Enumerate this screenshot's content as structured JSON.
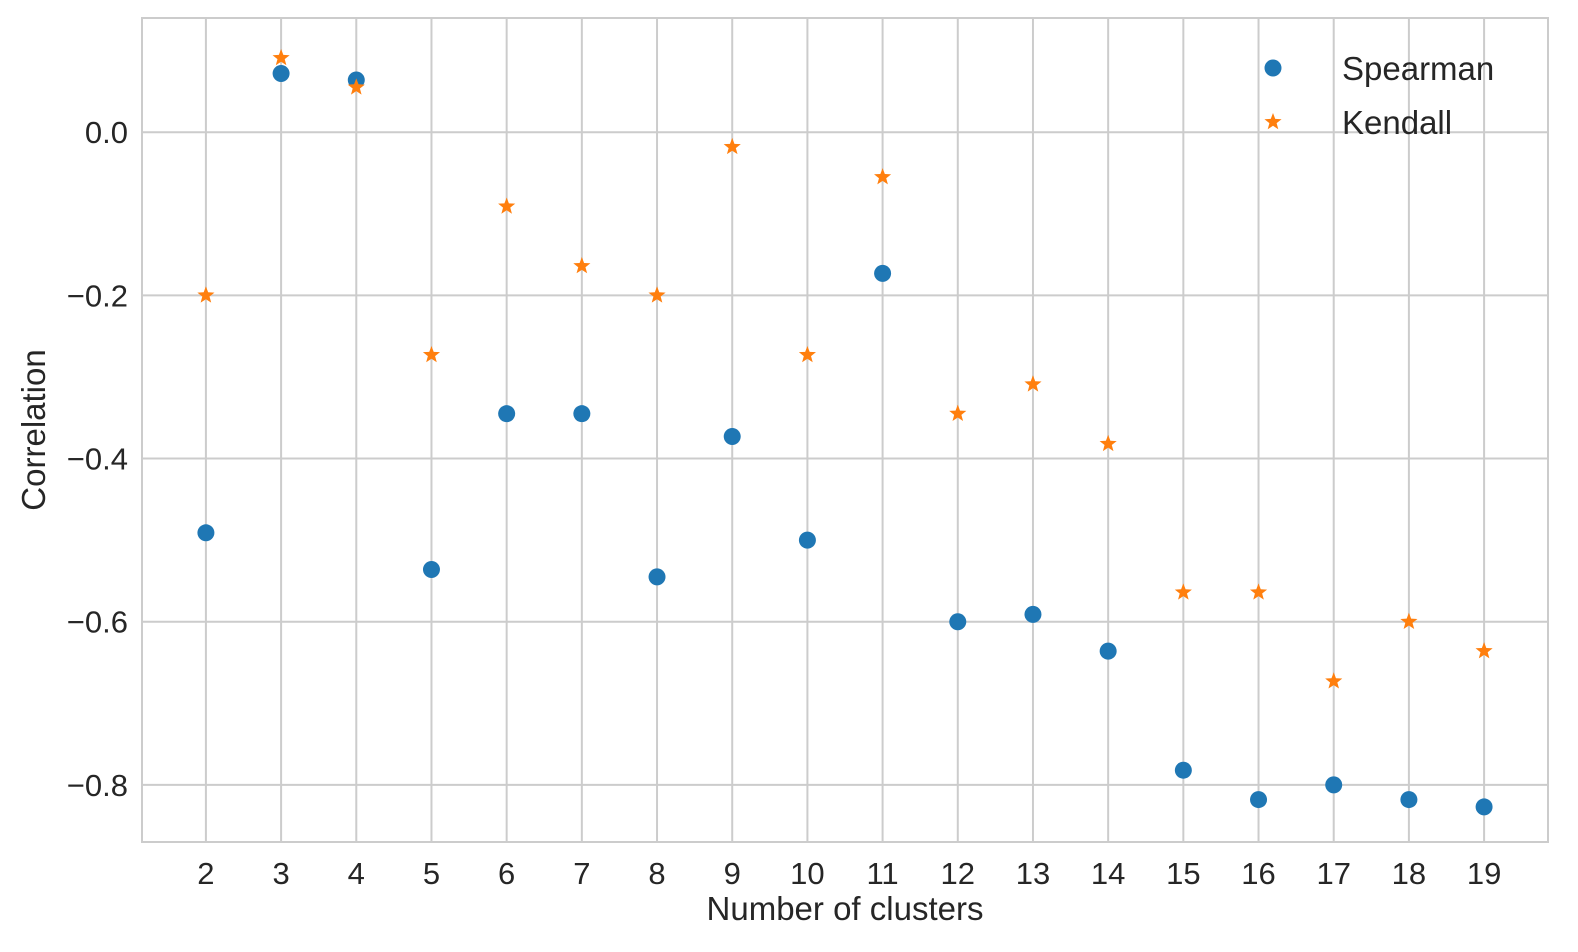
{
  "chart_data": {
    "type": "scatter",
    "xlabel": "Number of clusters",
    "ylabel": "Correlation",
    "x": [
      2,
      3,
      4,
      5,
      6,
      7,
      8,
      9,
      10,
      11,
      12,
      13,
      14,
      15,
      16,
      17,
      18,
      19
    ],
    "xlim": [
      1.15,
      19.85
    ],
    "ylim": [
      -0.87,
      0.14
    ],
    "xticks": [
      2,
      3,
      4,
      5,
      6,
      7,
      8,
      9,
      10,
      11,
      12,
      13,
      14,
      15,
      16,
      17,
      18,
      19
    ],
    "yticks": [
      0.0,
      -0.2,
      -0.4,
      -0.6,
      -0.8
    ],
    "ytick_labels": [
      "0.0",
      "−0.2",
      "−0.4",
      "−0.6",
      "−0.8"
    ],
    "grid": true,
    "legend_position": "top-right",
    "series": [
      {
        "name": "Spearman",
        "marker": "circle",
        "color": "#1f77b4",
        "values": [
          -0.491,
          0.072,
          0.064,
          -0.536,
          -0.345,
          -0.345,
          -0.545,
          -0.373,
          -0.5,
          -0.173,
          -0.6,
          -0.591,
          -0.636,
          -0.782,
          -0.818,
          -0.8,
          -0.818,
          -0.827
        ]
      },
      {
        "name": "Kendall",
        "marker": "star",
        "color": "#ff7f0e",
        "values": [
          -0.2,
          0.091,
          0.055,
          -0.273,
          -0.091,
          -0.164,
          -0.2,
          -0.018,
          -0.273,
          -0.055,
          -0.345,
          -0.309,
          -0.382,
          -0.564,
          -0.564,
          -0.673,
          -0.6,
          -0.636
        ]
      }
    ]
  }
}
